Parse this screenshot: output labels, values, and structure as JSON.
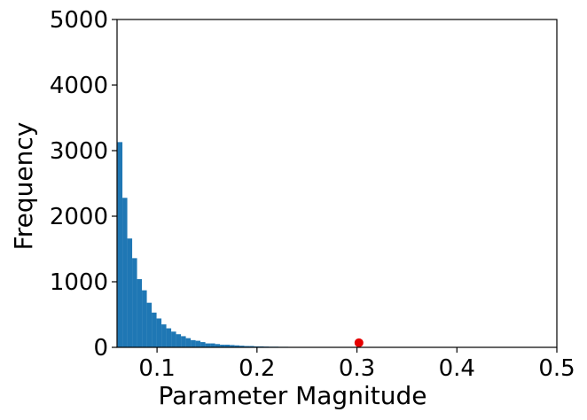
{
  "chart_data": {
    "type": "histogram",
    "title": "",
    "xlabel": "Parameter Magnitude",
    "ylabel": "Frequency",
    "xlim": [
      0.06,
      0.5
    ],
    "ylim": [
      0,
      5000
    ],
    "xticks": [
      0.1,
      0.2,
      0.3,
      0.4,
      0.5
    ],
    "xtick_labels": [
      "0.1",
      "0.2",
      "0.3",
      "0.4",
      "0.5"
    ],
    "yticks": [
      0,
      1000,
      2000,
      3000,
      4000,
      5000
    ],
    "ytick_labels": [
      "0",
      "1000",
      "2000",
      "3000",
      "4000",
      "5000"
    ],
    "grid": false,
    "legend": "none",
    "bar_color": "#1f77b4",
    "marker_color": "#e50000",
    "bins": {
      "start": 0.0605,
      "width": 0.00488,
      "counts": [
        3130,
        2280,
        1660,
        1360,
        1040,
        870,
        680,
        530,
        440,
        350,
        290,
        240,
        200,
        170,
        140,
        110,
        100,
        80,
        60,
        60,
        50,
        40,
        40,
        35,
        30,
        25,
        20,
        20,
        15,
        15,
        12,
        10,
        10,
        8,
        8,
        6,
        6,
        5,
        5,
        5,
        4,
        4,
        3,
        3,
        3,
        3,
        3,
        2,
        2,
        2,
        2,
        2
      ]
    },
    "highlight_point": {
      "x": 0.302,
      "y": 70
    }
  }
}
